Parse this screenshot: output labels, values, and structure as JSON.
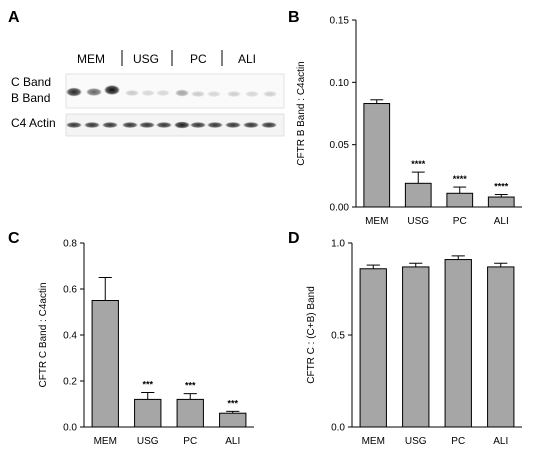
{
  "panels": {
    "A": "A",
    "B": "B",
    "C": "C",
    "D": "D"
  },
  "blot": {
    "groups": [
      "MEM",
      "USG",
      "PC",
      "ALI"
    ],
    "row_labels": [
      "C Band",
      "B Band",
      "C4 Actin"
    ]
  },
  "chart_data": [
    {
      "panel": "B",
      "type": "bar",
      "categories": [
        "MEM",
        "USG",
        "PC",
        "ALI"
      ],
      "values": [
        0.083,
        0.019,
        0.011,
        0.008
      ],
      "errors": [
        0.003,
        0.009,
        0.005,
        0.002
      ],
      "significance": [
        "",
        "****",
        "****",
        "****"
      ],
      "ylabel": "CFTR B Band : C4actin",
      "ylim": [
        0,
        0.15
      ],
      "yticks": [
        0.0,
        0.05,
        0.1,
        0.15
      ],
      "ytick_labels": [
        "0.00",
        "0.05",
        "0.10",
        "0.15"
      ],
      "bar_color": "#a6a6a6"
    },
    {
      "panel": "C",
      "type": "bar",
      "categories": [
        "MEM",
        "USG",
        "PC",
        "ALI"
      ],
      "values": [
        0.55,
        0.12,
        0.12,
        0.06
      ],
      "errors": [
        0.1,
        0.03,
        0.025,
        0.008
      ],
      "significance": [
        "",
        "***",
        "***",
        "***"
      ],
      "ylabel": "CFTR C Band : C4actin",
      "ylim": [
        0,
        0.8
      ],
      "yticks": [
        0.0,
        0.2,
        0.4,
        0.6,
        0.8
      ],
      "ytick_labels": [
        "0.0",
        "0.2",
        "0.4",
        "0.6",
        "0.8"
      ],
      "bar_color": "#a6a6a6"
    },
    {
      "panel": "D",
      "type": "bar",
      "categories": [
        "MEM",
        "USG",
        "PC",
        "ALI"
      ],
      "values": [
        0.86,
        0.87,
        0.91,
        0.87
      ],
      "errors": [
        0.02,
        0.02,
        0.02,
        0.02
      ],
      "significance": [
        "",
        "",
        "",
        ""
      ],
      "ylabel": "CFTR C : (C+B) Band",
      "ylim": [
        0,
        1.0
      ],
      "yticks": [
        0.0,
        0.5,
        1.0
      ],
      "ytick_labels": [
        "0.0",
        "0.5",
        "1.0"
      ],
      "bar_color": "#a6a6a6"
    }
  ]
}
